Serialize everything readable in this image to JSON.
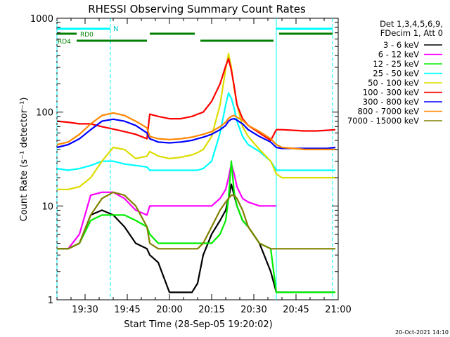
{
  "chart_data": {
    "type": "line",
    "title": "RHESSI Observing Summary Count Rates",
    "xlabel": "Start Time (28-Sep-05 19:20:02)",
    "ylabel": "Count Rate (s⁻¹ detector⁻¹)",
    "xlim": [
      "19:20",
      "21:00"
    ],
    "ylim": [
      1,
      1000
    ],
    "yscale": "log",
    "xticks": [
      "19:30",
      "19:45",
      "20:00",
      "20:15",
      "20:30",
      "20:45",
      "21:00"
    ],
    "yticks": [
      "1",
      "10",
      "100",
      "1000"
    ],
    "legend_header": [
      "Det 1,3,4,5,6,9,",
      "FDecim 1, Att 0"
    ],
    "legend_position": "right",
    "footer": "20-Oct-2021 14:10",
    "night_intervals": [
      [
        "19:20",
        "19:39"
      ],
      [
        "20:38",
        "20:58"
      ]
    ],
    "night_label": "N",
    "rd_flags": [
      {
        "label": "RD0",
        "intervals": [
          [
            "19:20",
            "19:27"
          ],
          [
            "19:53",
            "20:09"
          ],
          [
            "20:39",
            "20:58"
          ]
        ]
      },
      {
        "label": "RD4",
        "intervals": [
          [
            "19:27",
            "19:52"
          ],
          [
            "20:11",
            "20:37"
          ]
        ]
      }
    ],
    "times": [
      "19:20",
      "19:24",
      "19:28",
      "19:32",
      "19:36",
      "19:40",
      "19:44",
      "19:48",
      "19:52",
      "19:53",
      "19:56",
      "20:00",
      "20:04",
      "20:08",
      "20:10",
      "20:12",
      "20:15",
      "20:18",
      "20:20",
      "20:21",
      "20:22",
      "20:23",
      "20:24",
      "20:26",
      "20:28",
      "20:32",
      "20:36",
      "20:38",
      "20:40",
      "20:44",
      "20:48",
      "20:52",
      "20:56",
      "20:59"
    ],
    "series": [
      {
        "name": "3 - 6 keV",
        "color": "#000000",
        "values": [
          3.5,
          3.5,
          4,
          8,
          9,
          8,
          6,
          4,
          3.5,
          3,
          2.5,
          1.2,
          1.2,
          1.2,
          1.5,
          3,
          5,
          7,
          9,
          12,
          17,
          13,
          10,
          7,
          6,
          4,
          2,
          1.2,
          1.2,
          1.2,
          1.2,
          1.2,
          1.2,
          1.2
        ]
      },
      {
        "name": "6 - 12 keV",
        "color": "#ff00ff",
        "values": [
          3.5,
          3.5,
          5,
          13,
          14,
          14,
          12,
          9,
          8,
          10,
          10,
          10,
          10,
          10,
          10,
          10,
          10,
          12,
          15,
          20,
          28,
          22,
          16,
          12,
          11,
          10,
          10,
          10,
          null,
          null,
          null,
          null,
          null,
          null
        ]
      },
      {
        "name": "12 - 25 keV",
        "color": "#00ee00",
        "values": [
          3.5,
          3.5,
          4,
          7,
          8,
          8,
          8,
          7,
          6,
          5,
          4,
          4,
          4,
          4,
          4,
          4,
          4,
          5,
          7,
          12,
          30,
          14,
          10,
          7,
          6,
          4,
          3.5,
          1.2,
          1.2,
          1.2,
          1.2,
          1.2,
          1.2,
          1.2
        ]
      },
      {
        "name": "25 - 50 keV",
        "color": "#00ffff",
        "values": [
          25,
          24,
          25,
          27,
          30,
          30,
          28,
          27,
          26,
          24,
          24,
          24,
          24,
          24,
          24,
          25,
          30,
          60,
          120,
          160,
          140,
          110,
          80,
          55,
          45,
          38,
          30,
          24,
          24,
          24,
          24,
          24,
          24,
          24
        ]
      },
      {
        "name": "50 - 100 keV",
        "color": "#dddd00",
        "values": [
          15,
          15,
          16,
          20,
          30,
          42,
          40,
          32,
          34,
          38,
          34,
          32,
          33,
          35,
          37,
          40,
          55,
          120,
          290,
          420,
          300,
          180,
          120,
          70,
          55,
          40,
          30,
          22,
          20,
          20,
          20,
          20,
          20,
          20
        ]
      },
      {
        "name": "100 - 300 keV",
        "color": "#ff0000",
        "values": [
          80,
          78,
          75,
          75,
          70,
          66,
          62,
          58,
          52,
          95,
          90,
          85,
          85,
          90,
          95,
          100,
          130,
          200,
          310,
          370,
          280,
          190,
          120,
          85,
          72,
          60,
          50,
          65,
          65,
          64,
          63,
          63,
          64,
          65
        ]
      },
      {
        "name": "300 - 800 keV",
        "color": "#0000ff",
        "values": [
          42,
          45,
          52,
          65,
          80,
          84,
          80,
          72,
          60,
          52,
          48,
          47,
          48,
          50,
          52,
          54,
          58,
          65,
          72,
          80,
          84,
          85,
          82,
          75,
          65,
          55,
          48,
          42,
          41,
          41,
          41,
          41,
          41,
          42
        ]
      },
      {
        "name": "800 - 7000 keV",
        "color": "#ff8800",
        "values": [
          45,
          48,
          58,
          75,
          92,
          98,
          92,
          80,
          68,
          55,
          52,
          51,
          52,
          54,
          56,
          58,
          62,
          70,
          78,
          86,
          90,
          92,
          88,
          82,
          72,
          62,
          52,
          45,
          42,
          41,
          40,
          40,
          40,
          40
        ]
      },
      {
        "name": "7000 - 15000 keV",
        "color": "#808000",
        "values": [
          3.5,
          3.5,
          4,
          8,
          12,
          14,
          13,
          10,
          6,
          4,
          3.5,
          3.5,
          3.5,
          3.5,
          3.5,
          4,
          6,
          9,
          11,
          12,
          13,
          13,
          12,
          9,
          6,
          4,
          3.5,
          3.5,
          3.5,
          3.5,
          3.5,
          3.5,
          3.5,
          3.5
        ]
      }
    ]
  }
}
